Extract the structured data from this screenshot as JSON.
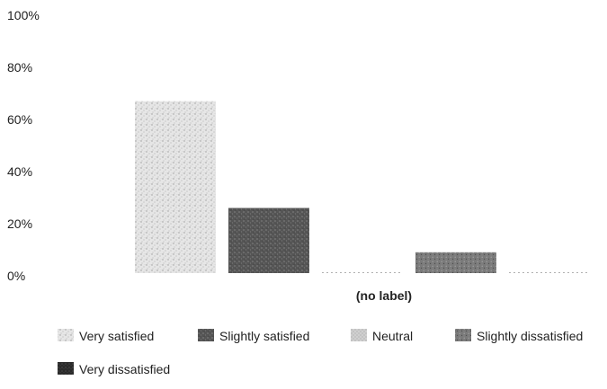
{
  "chart_data": {
    "type": "bar",
    "categories": [
      "(no label)"
    ],
    "series": [
      {
        "name": "Very satisfied",
        "values": [
          66
        ],
        "color": "#d9d9d9",
        "pattern": "light-speckle"
      },
      {
        "name": "Slightly satisfied",
        "values": [
          25
        ],
        "color": "#6e6e6e",
        "pattern": "dark-speckle"
      },
      {
        "name": "Neutral",
        "values": [
          0
        ],
        "color": "#bdbdbd",
        "pattern": "fine-stipple"
      },
      {
        "name": "Slightly dissatisfied",
        "values": [
          8
        ],
        "color": "#8c8c8c",
        "pattern": "medium-speckle"
      },
      {
        "name": "Very dissatisfied",
        "values": [
          0
        ],
        "color": "#333333",
        "pattern": "dense-dark"
      }
    ],
    "yticks": [
      "0%",
      "20%",
      "40%",
      "60%",
      "80%",
      "100%"
    ],
    "ylim": [
      0,
      100
    ],
    "title": "",
    "xlabel": "",
    "ylabel": "",
    "legend": "bottom",
    "grid": false
  }
}
